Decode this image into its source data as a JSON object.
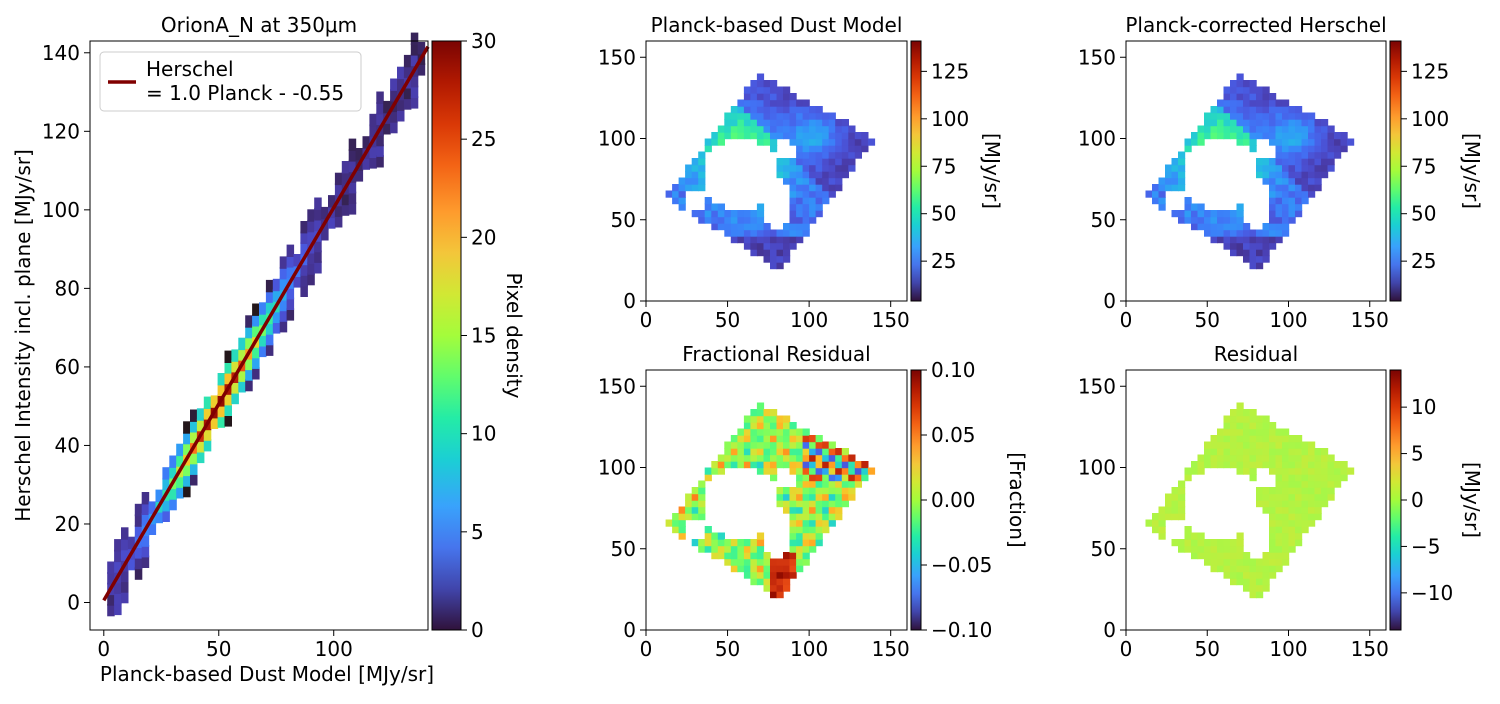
{
  "figure": {
    "title": "",
    "colormap": "turbo",
    "background": "#ffffff"
  },
  "chart_data": [
    {
      "id": "scatter",
      "type": "scatter",
      "title": "OrionA_N at 350μm",
      "xlabel": "Planck-based Dust Model [MJy/sr]",
      "ylabel": "Herschel Intensity incl. plane [MJy/sr]",
      "xlim": [
        -6,
        141
      ],
      "ylim": [
        -7,
        143
      ],
      "xticks": [
        0,
        50,
        100
      ],
      "yticks": [
        0,
        20,
        40,
        60,
        80,
        100,
        120,
        140
      ],
      "grid": false,
      "legend": {
        "position": "top-left",
        "entries": [
          {
            "label_line1": "Herschel",
            "label_line2": "= 1.0 Planck - -0.55",
            "color": "#800000"
          }
        ]
      },
      "fit_line": {
        "slope": 1.0,
        "intercept": 0.55,
        "x_range": [
          0,
          141
        ],
        "color": "#800000"
      },
      "colorbar": {
        "label": "Pixel density",
        "range": [
          0,
          30
        ],
        "ticks": [
          0,
          5,
          10,
          15,
          20,
          25,
          30
        ]
      },
      "bins": {
        "x_step": 3.0,
        "y_step": 3.0,
        "x_range": [
          3,
          140
        ],
        "peak_center_x": 50,
        "peak_density": 28
      }
    },
    {
      "id": "dust",
      "type": "heatmap",
      "title": "Planck-based Dust Model",
      "xlim": [
        0,
        160
      ],
      "ylim": [
        0,
        160
      ],
      "xticks": [
        0,
        50,
        100,
        150
      ],
      "yticks": [
        0,
        50,
        100,
        150
      ],
      "colorbar": {
        "label": "[MJy/sr]",
        "range": [
          4,
          141
        ],
        "ticks": [
          25,
          50,
          75,
          100,
          125
        ]
      },
      "map": "intensity"
    },
    {
      "id": "corrected",
      "type": "heatmap",
      "title": "Planck-corrected Herschel",
      "xlim": [
        0,
        160
      ],
      "ylim": [
        0,
        160
      ],
      "xticks": [
        0,
        50,
        100,
        150
      ],
      "yticks": [
        0,
        50,
        100,
        150
      ],
      "colorbar": {
        "label": "[MJy/sr]",
        "range": [
          4,
          141
        ],
        "ticks": [
          25,
          50,
          75,
          100,
          125
        ]
      },
      "map": "intensity"
    },
    {
      "id": "fracres",
      "type": "heatmap",
      "title": "Fractional Residual",
      "xlim": [
        0,
        160
      ],
      "ylim": [
        0,
        160
      ],
      "xticks": [
        0,
        50,
        100,
        150
      ],
      "yticks": [
        0,
        50,
        100,
        150
      ],
      "colorbar": {
        "label": "[Fraction]",
        "range": [
          -0.1,
          0.1
        ],
        "ticks": [
          "0.10",
          "0.05",
          "0.00",
          "−0.05",
          "−0.10"
        ],
        "tick_values": [
          0.1,
          0.05,
          0,
          -0.05,
          -0.1
        ]
      },
      "map": "fraction"
    },
    {
      "id": "residual",
      "type": "heatmap",
      "title": "Residual",
      "xlim": [
        0,
        160
      ],
      "ylim": [
        0,
        160
      ],
      "xticks": [
        0,
        50,
        100,
        150
      ],
      "yticks": [
        0,
        50,
        100,
        150
      ],
      "colorbar": {
        "label": "[MJy/sr]",
        "range": [
          -14,
          14
        ],
        "ticks": [
          "10",
          "5",
          "0",
          "−5",
          "−10"
        ],
        "tick_values": [
          10,
          5,
          0,
          -5,
          -10
        ]
      },
      "map": "residual"
    }
  ]
}
